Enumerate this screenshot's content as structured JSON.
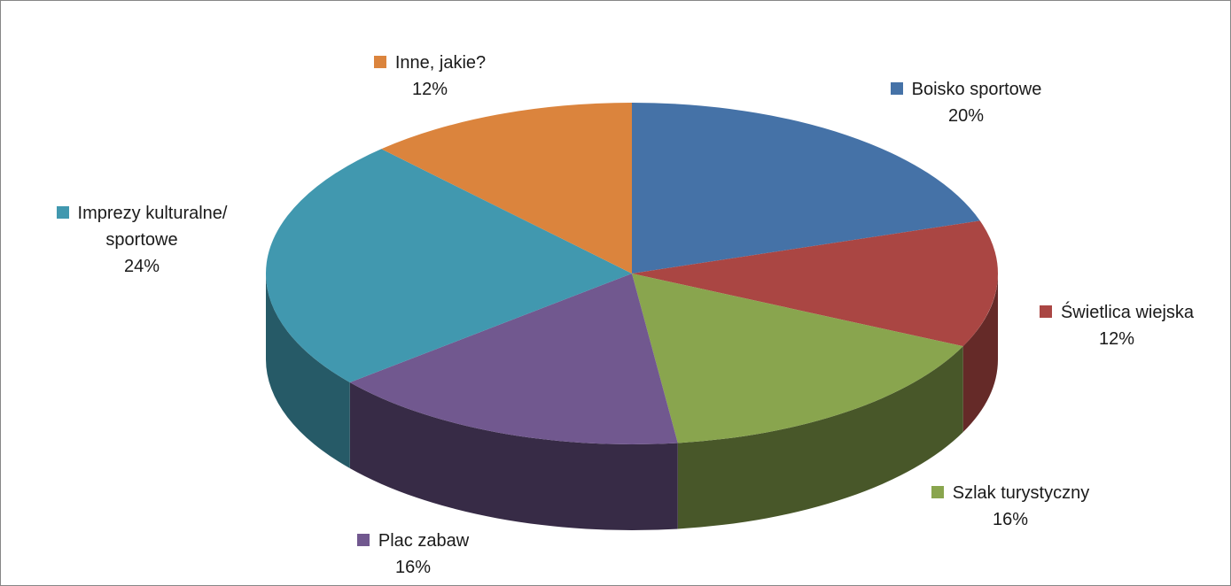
{
  "chart_data": {
    "type": "pie",
    "three_d": true,
    "title": "",
    "legend": "none",
    "slices": [
      {
        "label": "Boisko sportowe",
        "value": 20,
        "value_label": "20%",
        "color": "#4572a7"
      },
      {
        "label": "Świetlica wiejska",
        "value": 12,
        "value_label": "12%",
        "color": "#aa4643"
      },
      {
        "label": "Szlak turystyczny",
        "value": 16,
        "value_label": "16%",
        "color": "#89a54e"
      },
      {
        "label": "Plac zabaw",
        "value": 16,
        "value_label": "16%",
        "color": "#71588f"
      },
      {
        "label": "Imprezy kulturalne/ sportowe",
        "label_lines": [
          "Imprezy kulturalne/",
          "sportowe"
        ],
        "value": 24,
        "value_label": "24%",
        "color": "#4198af"
      },
      {
        "label": "Inne, jakie?",
        "value": 12,
        "value_label": "12%",
        "color": "#db843d"
      }
    ]
  }
}
